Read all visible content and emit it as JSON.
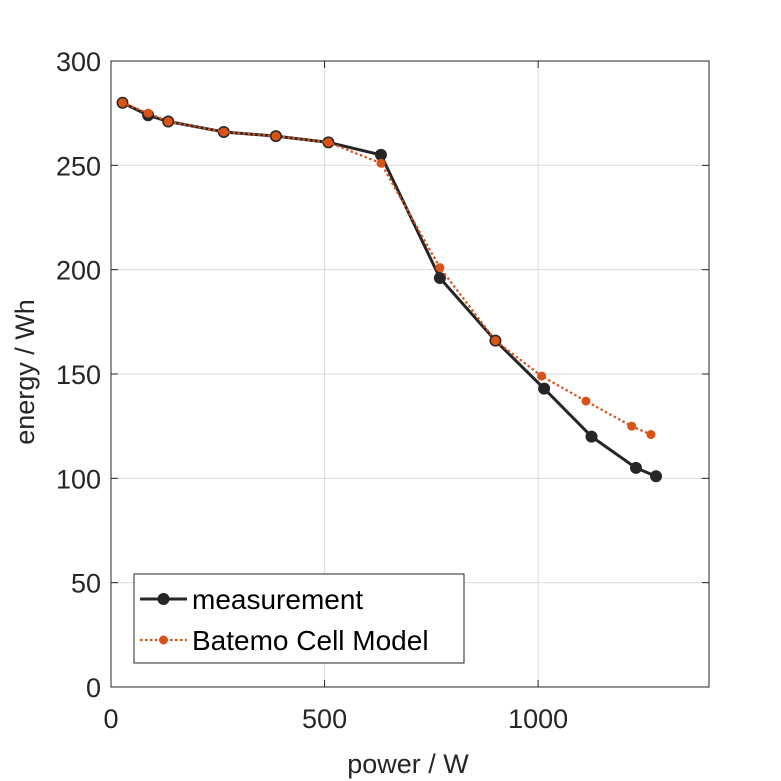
{
  "chart_data": {
    "type": "line",
    "title": "",
    "xlabel": "power / W",
    "ylabel": "energy / Wh",
    "xlim": [
      0,
      1400
    ],
    "ylim": [
      0,
      300
    ],
    "xticks": [
      0,
      500,
      1000
    ],
    "yticks": [
      0,
      50,
      100,
      150,
      200,
      250,
      300
    ],
    "xtick_labels": [
      "0",
      "500",
      "1000"
    ],
    "ytick_labels": [
      "0",
      "50",
      "100",
      "150",
      "200",
      "250",
      "300"
    ],
    "grid": true,
    "legend_position": "bottom-left",
    "series": [
      {
        "name": "measurement",
        "color": "#262626",
        "style": "solid",
        "x": [
          27,
          87,
          134,
          264,
          386,
          509,
          632,
          770,
          900,
          1014,
          1125,
          1229,
          1276
        ],
        "y": [
          280,
          274,
          271,
          266,
          264,
          261,
          255,
          196,
          166,
          143,
          120,
          105,
          101
        ]
      },
      {
        "name": "Batemo Cell Model",
        "color": "#d95319",
        "style": "dotted",
        "x": [
          27,
          87,
          134,
          264,
          386,
          509,
          632,
          770,
          900,
          1008,
          1112,
          1219,
          1264
        ],
        "y": [
          280,
          275,
          271,
          266,
          264,
          261,
          251,
          201,
          166,
          149,
          137,
          125,
          121
        ]
      }
    ]
  }
}
